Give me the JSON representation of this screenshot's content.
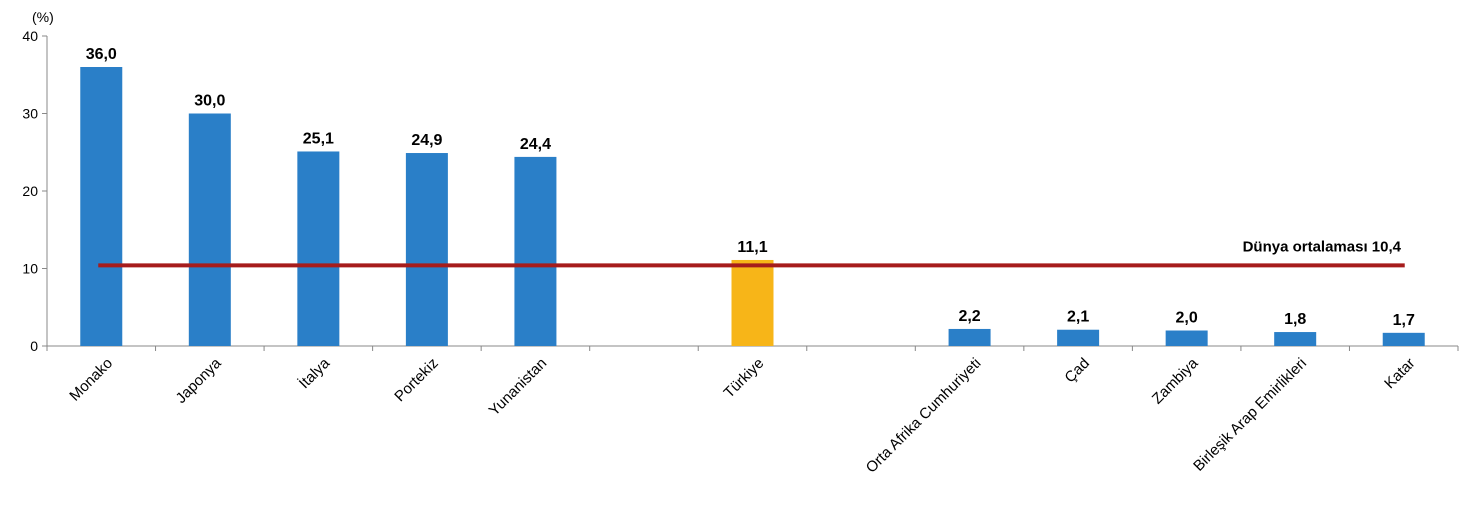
{
  "chart_data": {
    "type": "bar",
    "ylabel": "(%)",
    "ylim": [
      0,
      40
    ],
    "yticks": [
      0,
      10,
      20,
      30,
      40
    ],
    "categories": [
      "Monako",
      "Japonya",
      "İtalya",
      "Portekiz",
      "Yunanistan",
      "",
      "Türkiye",
      "",
      "Orta Afrika Cumhuriyeti",
      "Çad",
      "Zambiya",
      "Birleşik Arap Emirlikleri",
      "Katar"
    ],
    "values": [
      36.0,
      30.0,
      25.1,
      24.9,
      24.4,
      null,
      11.1,
      null,
      2.2,
      2.1,
      2.0,
      1.8,
      1.7
    ],
    "value_labels": [
      "36,0",
      "30,0",
      "25,1",
      "24,9",
      "24,4",
      "",
      "11,1",
      "",
      "2,2",
      "2,1",
      "2,0",
      "1,8",
      "1,7"
    ],
    "highlight_category": "Türkiye",
    "colors": {
      "bar": "#2a7fc8",
      "highlight": "#f7b518",
      "average_line": "#a61c1c",
      "axis": "#888888"
    },
    "reference_line": {
      "label": "Dünya ortalaması  10,4",
      "value": 10.4
    },
    "grid": false,
    "legend": "none"
  }
}
